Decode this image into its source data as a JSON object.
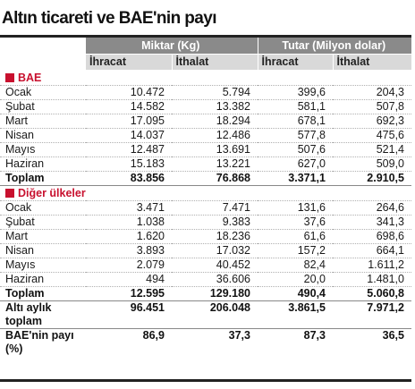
{
  "title": "Altın ticareti ve BAE'nin payı",
  "headers": {
    "group1": "Miktar (Kg)",
    "group2": "Tutar (Milyon dolar)",
    "sub": [
      "İhracat",
      "İthalat",
      "İhracat",
      "İthalat"
    ]
  },
  "colors": {
    "accent": "#c8102e",
    "header_dark": "#8a8a8a",
    "header_light": "#d9d9d9"
  },
  "section1": {
    "label": "BAE",
    "rows": [
      {
        "month": "Ocak",
        "v": [
          "10.472",
          "5.794",
          "399,6",
          "204,3"
        ]
      },
      {
        "month": "Şubat",
        "v": [
          "14.582",
          "13.382",
          "581,1",
          "507,8"
        ]
      },
      {
        "month": "Mart",
        "v": [
          "17.095",
          "18.294",
          "678,1",
          "692,3"
        ]
      },
      {
        "month": "Nisan",
        "v": [
          "14.037",
          "12.486",
          "577,8",
          "475,6"
        ]
      },
      {
        "month": "Mayıs",
        "v": [
          "12.487",
          "13.691",
          "507,6",
          "521,4"
        ]
      },
      {
        "month": "Haziran",
        "v": [
          "15.183",
          "13.221",
          "627,0",
          "509,0"
        ]
      }
    ],
    "total": {
      "label": "Toplam",
      "v": [
        "83.856",
        "76.868",
        "3.371,1",
        "2.910,5"
      ]
    }
  },
  "section2": {
    "label": "Diğer ülkeler",
    "rows": [
      {
        "month": "Ocak",
        "v": [
          "3.471",
          "7.471",
          "131,6",
          "264,6"
        ]
      },
      {
        "month": "Şubat",
        "v": [
          "1.038",
          "9.383",
          "37,6",
          "341,3"
        ]
      },
      {
        "month": "Mart",
        "v": [
          "1.620",
          "18.236",
          "61,6",
          "698,6"
        ]
      },
      {
        "month": "Nisan",
        "v": [
          "3.893",
          "17.032",
          "157,2",
          "664,1"
        ]
      },
      {
        "month": "Mayıs",
        "v": [
          "2.079",
          "40.452",
          "82,4",
          "1.611,2"
        ]
      },
      {
        "month": "Haziran",
        "v": [
          "494",
          "36.606",
          "20,0",
          "1.481,0"
        ]
      }
    ],
    "total": {
      "label": "Toplam",
      "v": [
        "12.595",
        "129.180",
        "490,4",
        "5.060,8"
      ]
    }
  },
  "six_month_total": {
    "label": "Altı aylık toplam",
    "v": [
      "96.451",
      "206.048",
      "3.861,5",
      "7.971,2"
    ]
  },
  "share": {
    "label": "BAE'nin payı (%)",
    "v": [
      "86,9",
      "37,3",
      "87,3",
      "36,5"
    ]
  }
}
